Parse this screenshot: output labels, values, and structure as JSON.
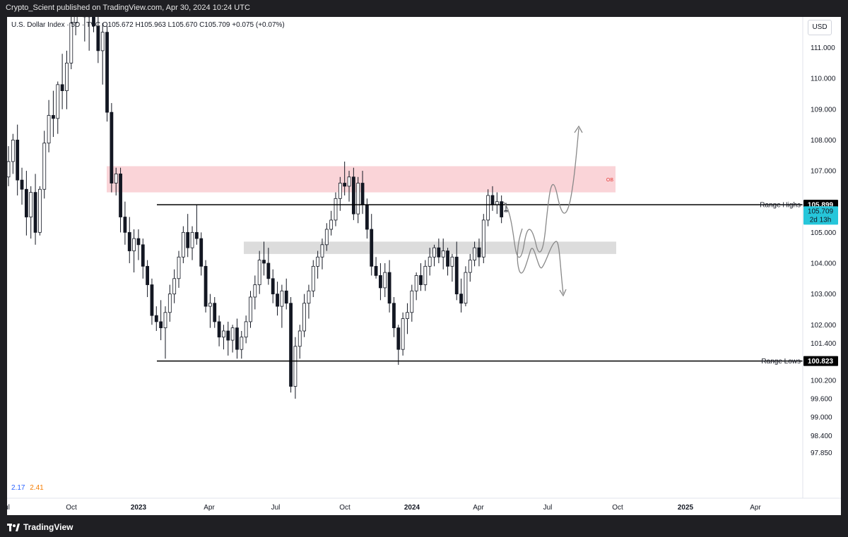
{
  "header": {
    "publish_text": "Crypto_Scient published on TradingView.com, Apr 30, 2024 10:24 UTC"
  },
  "symbol": {
    "name": "U.S. Dollar Index",
    "interval": "5D",
    "exchange": "TVC",
    "ohlc_text": "O105.672  H105.963  L105.670  C105.709  +0.075 (+0.07%)",
    "line_text": "U.S. Dollar Index · 5D · TVC   O105.672  H105.963  L105.670  C105.709  +0.075 (+0.07%)"
  },
  "indicator": {
    "v1": "2.17",
    "v2": "2.41"
  },
  "currency": "USD",
  "colors": {
    "up": "#131722",
    "down": "#131722",
    "ob_zone": "#f8c6cb",
    "support_zone": "#d8d8d8",
    "price_box": "#26c6da",
    "sketch": "#888888"
  },
  "footer": {
    "brand": "TradingView"
  },
  "chart_data": {
    "type": "candlestick",
    "y_axis_ticks": [
      "111.000",
      "110.000",
      "109.000",
      "108.000",
      "107.000",
      "105.000",
      "104.000",
      "103.000",
      "102.000",
      "101.400",
      "100.200",
      "99.600",
      "99.000",
      "98.400",
      "97.850"
    ],
    "x_axis_ticks": [
      {
        "label": "ul",
        "bold": false
      },
      {
        "label": "Oct",
        "bold": false
      },
      {
        "label": "2023",
        "bold": true
      },
      {
        "label": "Apr",
        "bold": false
      },
      {
        "label": "Jul",
        "bold": false
      },
      {
        "label": "Oct",
        "bold": false
      },
      {
        "label": "2024",
        "bold": true
      },
      {
        "label": "Apr",
        "bold": false
      },
      {
        "label": "Jul",
        "bold": false
      },
      {
        "label": "Oct",
        "bold": false
      },
      {
        "label": "2025",
        "bold": true
      },
      {
        "label": "Apr",
        "bold": false
      }
    ],
    "horizontal_lines": [
      {
        "label": "Range Highs",
        "value": 105.899,
        "value_text": "105.899"
      },
      {
        "label": "Range Lows",
        "value": 100.823,
        "value_text": "100.823"
      }
    ],
    "zones": [
      {
        "label": "OB",
        "from": 106.3,
        "to": 107.15
      },
      {
        "label": "",
        "from": 104.3,
        "to": 104.7
      }
    ],
    "last_price": {
      "value": 105.709,
      "value_text": "105.709",
      "countdown": "2d 13h"
    },
    "candles": [
      [
        106.8,
        107.8,
        106.5,
        107.3
      ],
      [
        107.3,
        108.2,
        106.9,
        108.0
      ],
      [
        108.0,
        108.5,
        106.2,
        106.7
      ],
      [
        106.7,
        107.1,
        105.9,
        106.4
      ],
      [
        106.4,
        107.0,
        104.9,
        105.5
      ],
      [
        105.5,
        106.5,
        104.8,
        106.3
      ],
      [
        106.3,
        106.9,
        104.6,
        105.0
      ],
      [
        105.0,
        106.5,
        104.9,
        106.4
      ],
      [
        106.4,
        108.3,
        106.1,
        107.9
      ],
      [
        107.9,
        109.3,
        107.6,
        108.8
      ],
      [
        108.8,
        109.6,
        108.1,
        108.7
      ],
      [
        108.7,
        109.9,
        108.2,
        109.8
      ],
      [
        109.8,
        110.8,
        109.0,
        109.6
      ],
      [
        109.6,
        110.9,
        109.0,
        110.5
      ],
      [
        110.5,
        112.0,
        110.3,
        111.8
      ],
      [
        111.8,
        113.1,
        111.4,
        112.9
      ],
      [
        112.9,
        113.8,
        112.1,
        112.3
      ],
      [
        112.3,
        113.2,
        111.2,
        112.0
      ],
      [
        112.0,
        113.0,
        110.9,
        112.5
      ],
      [
        112.5,
        113.6,
        111.5,
        111.7
      ],
      [
        111.7,
        112.3,
        110.5,
        110.9
      ],
      [
        110.9,
        111.8,
        109.8,
        111.5
      ],
      [
        111.5,
        111.7,
        108.6,
        108.9
      ],
      [
        108.9,
        109.2,
        106.3,
        106.6
      ],
      [
        106.6,
        107.1,
        106.2,
        106.9
      ],
      [
        106.9,
        107.1,
        105.0,
        105.5
      ],
      [
        105.5,
        106.0,
        104.6,
        105.0
      ],
      [
        105.0,
        105.5,
        104.0,
        104.4
      ],
      [
        104.4,
        105.1,
        103.7,
        104.8
      ],
      [
        104.8,
        105.1,
        104.1,
        104.6
      ],
      [
        104.6,
        104.8,
        103.5,
        103.9
      ],
      [
        103.9,
        104.1,
        102.9,
        103.3
      ],
      [
        103.3,
        103.5,
        102.0,
        102.3
      ],
      [
        102.3,
        102.6,
        101.8,
        102.1
      ],
      [
        102.1,
        102.8,
        101.5,
        101.9
      ],
      [
        101.9,
        102.6,
        100.9,
        102.4
      ],
      [
        102.4,
        103.3,
        102.1,
        103.0
      ],
      [
        103.0,
        103.8,
        102.7,
        103.5
      ],
      [
        103.5,
        104.4,
        103.2,
        104.2
      ],
      [
        104.2,
        105.2,
        104.0,
        105.0
      ],
      [
        105.0,
        105.6,
        104.2,
        104.5
      ],
      [
        104.5,
        105.2,
        104.1,
        105.0
      ],
      [
        105.0,
        105.9,
        104.6,
        104.8
      ],
      [
        104.8,
        105.0,
        103.6,
        103.9
      ],
      [
        103.9,
        104.1,
        102.4,
        102.6
      ],
      [
        102.6,
        103.0,
        101.9,
        102.7
      ],
      [
        102.7,
        102.9,
        101.9,
        102.1
      ],
      [
        102.1,
        102.3,
        101.3,
        101.6
      ],
      [
        101.6,
        102.0,
        101.2,
        101.8
      ],
      [
        101.8,
        102.1,
        101.0,
        101.5
      ],
      [
        101.5,
        102.0,
        101.1,
        101.9
      ],
      [
        101.9,
        102.2,
        100.9,
        101.2
      ],
      [
        101.2,
        101.8,
        100.9,
        101.6
      ],
      [
        101.6,
        102.3,
        101.4,
        102.1
      ],
      [
        102.1,
        103.1,
        101.9,
        102.9
      ],
      [
        102.9,
        103.6,
        102.5,
        103.3
      ],
      [
        103.3,
        104.4,
        103.0,
        104.1
      ],
      [
        104.1,
        104.7,
        103.6,
        104.0
      ],
      [
        104.0,
        104.5,
        103.3,
        103.5
      ],
      [
        103.5,
        103.8,
        102.7,
        103.0
      ],
      [
        103.0,
        103.4,
        102.3,
        102.6
      ],
      [
        102.6,
        103.3,
        101.9,
        103.1
      ],
      [
        103.1,
        103.5,
        102.5,
        102.7
      ],
      [
        102.7,
        102.9,
        99.8,
        100.0
      ],
      [
        100.0,
        101.6,
        99.6,
        101.3
      ],
      [
        101.3,
        102.0,
        100.9,
        101.8
      ],
      [
        101.8,
        103.0,
        101.6,
        102.7
      ],
      [
        102.7,
        103.3,
        102.2,
        103.1
      ],
      [
        103.1,
        104.1,
        102.9,
        103.9
      ],
      [
        103.9,
        104.4,
        103.5,
        104.2
      ],
      [
        104.2,
        104.8,
        103.8,
        104.6
      ],
      [
        104.6,
        105.3,
        104.4,
        105.1
      ],
      [
        105.1,
        105.7,
        104.9,
        105.4
      ],
      [
        105.4,
        106.3,
        105.2,
        106.1
      ],
      [
        106.1,
        106.8,
        105.7,
        106.6
      ],
      [
        106.6,
        107.3,
        106.2,
        106.5
      ],
      [
        106.5,
        107.0,
        106.0,
        106.8
      ],
      [
        106.8,
        107.1,
        105.4,
        105.6
      ],
      [
        105.6,
        106.8,
        105.3,
        106.6
      ],
      [
        106.6,
        107.0,
        105.6,
        105.9
      ],
      [
        105.9,
        106.1,
        104.8,
        105.1
      ],
      [
        105.1,
        105.6,
        103.6,
        103.9
      ],
      [
        103.9,
        104.2,
        103.5,
        103.6
      ],
      [
        103.6,
        104.0,
        102.8,
        103.2
      ],
      [
        103.2,
        104.0,
        102.9,
        103.7
      ],
      [
        103.7,
        104.1,
        102.4,
        102.7
      ],
      [
        102.7,
        102.9,
        101.6,
        101.9
      ],
      [
        101.9,
        102.0,
        100.7,
        101.2
      ],
      [
        101.2,
        102.4,
        101.0,
        102.2
      ],
      [
        102.2,
        102.7,
        101.7,
        102.4
      ],
      [
        102.4,
        103.3,
        102.1,
        103.1
      ],
      [
        103.1,
        103.7,
        102.8,
        103.6
      ],
      [
        103.6,
        104.0,
        103.1,
        103.3
      ],
      [
        103.3,
        104.1,
        103.1,
        103.9
      ],
      [
        103.9,
        104.5,
        103.6,
        104.2
      ],
      [
        104.2,
        104.6,
        103.9,
        104.5
      ],
      [
        104.5,
        104.8,
        104.0,
        104.2
      ],
      [
        104.2,
        104.8,
        103.8,
        104.4
      ],
      [
        104.4,
        104.5,
        103.6,
        103.9
      ],
      [
        103.9,
        104.3,
        103.4,
        104.2
      ],
      [
        104.2,
        104.7,
        102.8,
        103.0
      ],
      [
        103.0,
        103.5,
        102.4,
        102.7
      ],
      [
        102.7,
        103.9,
        102.6,
        103.7
      ],
      [
        103.7,
        104.3,
        103.4,
        104.1
      ],
      [
        104.1,
        104.7,
        103.9,
        104.5
      ],
      [
        104.5,
        104.8,
        103.9,
        104.2
      ],
      [
        104.2,
        105.6,
        104.0,
        105.4
      ],
      [
        105.4,
        106.4,
        105.2,
        106.2
      ],
      [
        106.2,
        106.5,
        105.7,
        105.9
      ],
      [
        105.9,
        106.3,
        105.6,
        106.0
      ],
      [
        106.0,
        106.2,
        105.3,
        105.5
      ],
      [
        105.672,
        105.963,
        105.67,
        105.709
      ]
    ]
  }
}
